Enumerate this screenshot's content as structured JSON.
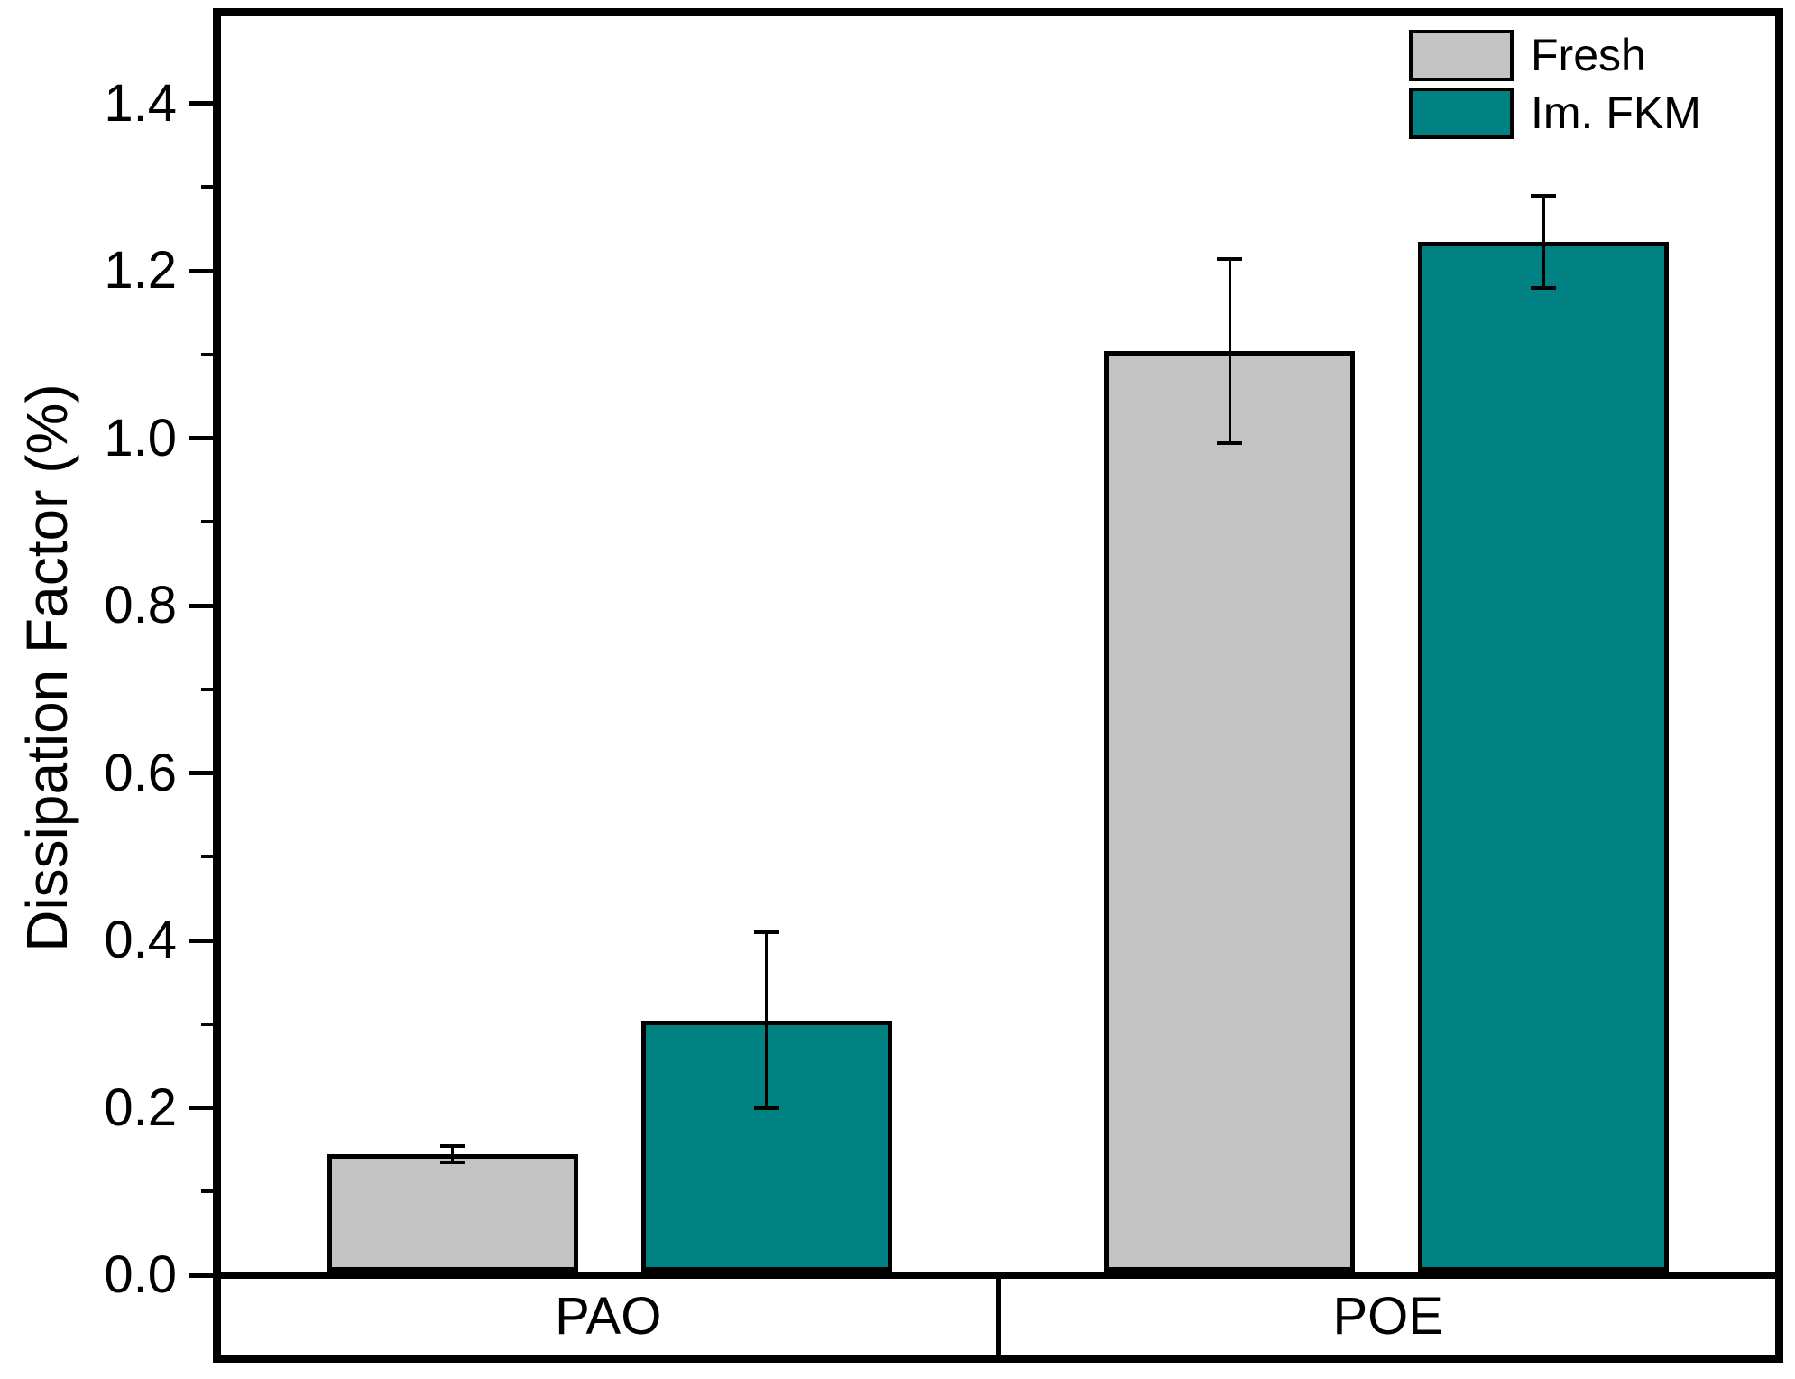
{
  "chart_data": {
    "type": "bar",
    "title": "",
    "xlabel": "",
    "ylabel": "Dissipation Factor (%)",
    "categories": [
      "PAO",
      "POE"
    ],
    "series": [
      {
        "name": "Fresh",
        "color": "#c3c3c3",
        "values": [
          0.14,
          1.1
        ],
        "errors": [
          0.01,
          0.11
        ]
      },
      {
        "name": "Im. FKM",
        "color": "#008282",
        "values": [
          0.3,
          1.23
        ],
        "errors": [
          0.105,
          0.055
        ]
      }
    ],
    "ylim": [
      0,
      1.5
    ],
    "yticks": [
      "0.0",
      "0.2",
      "0.4",
      "0.6",
      "0.8",
      "1.0",
      "1.2",
      "1.4"
    ],
    "ytick_step": 0.2,
    "minor_tick_step": 0.1,
    "grid": false,
    "legend_position": "top-right",
    "error_bars": true
  }
}
